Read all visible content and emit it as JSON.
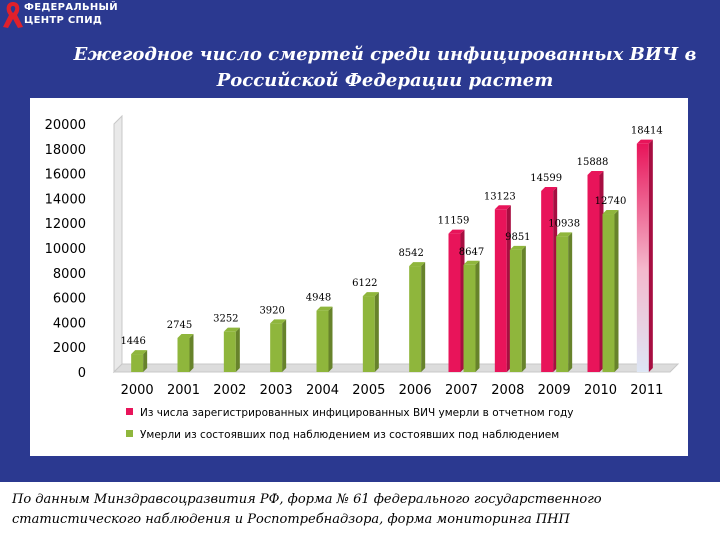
{
  "logo": {
    "line1": "ФЕДЕРАЛЬНЫЙ",
    "line2": "ЦЕНТР СПИД",
    "icon": "red-ribbon-icon"
  },
  "slide_title": "Ежегодное число смертей среди инфицированных ВИЧ в Российской Федерации растет",
  "footer_text": "По данным Минздравсоцразвития РФ, форма № 61 федерального государственного статистического наблюдения и Роспотребнадзора, форма мониторинга ПНП",
  "colors": {
    "background": "#2b3990",
    "red_series": "#e8145a",
    "green_series": "#8fb63c",
    "projection_top": "#e8145a",
    "projection_bottom": "#dde6f5"
  },
  "chart_data": {
    "type": "bar",
    "categories": [
      "2000",
      "2001",
      "2002",
      "2003",
      "2004",
      "2005",
      "2006",
      "2007",
      "2008",
      "2009",
      "2010",
      "2011"
    ],
    "ylim": [
      0,
      20000
    ],
    "yticks": [
      0,
      2000,
      4000,
      6000,
      8000,
      10000,
      12000,
      14000,
      16000,
      18000,
      20000
    ],
    "grid": false,
    "legend_position": "bottom",
    "series": [
      {
        "name": "Из числа зарегистрированных инфицированных ВИЧ умерли в отчетном году",
        "color": "#e8145a",
        "values": [
          null,
          null,
          null,
          null,
          null,
          null,
          null,
          11159,
          13123,
          14599,
          15888,
          18414
        ]
      },
      {
        "name": "Умерли из состоявших под наблюдением из состоявших под наблюдением",
        "color": "#8fb63c",
        "values": [
          1446,
          2745,
          3252,
          3920,
          4948,
          6122,
          8542,
          8647,
          9851,
          10938,
          12740,
          null
        ]
      }
    ]
  }
}
